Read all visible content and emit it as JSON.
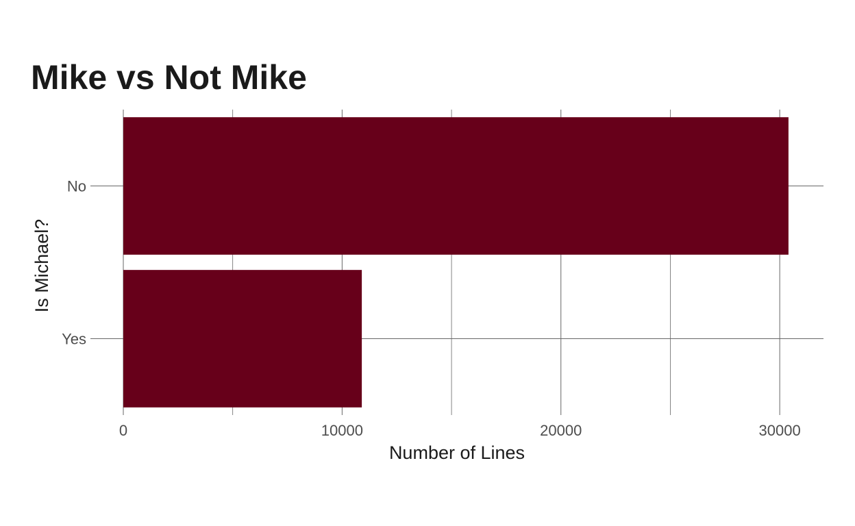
{
  "chart_data": {
    "type": "bar",
    "orientation": "horizontal",
    "title": "Mike vs Not Mike",
    "xlabel": "Number of Lines",
    "ylabel": "Is Michael?",
    "categories": [
      "No",
      "Yes"
    ],
    "values": [
      30400,
      10900
    ],
    "xlim": [
      0,
      32000
    ],
    "x_ticks": [
      0,
      10000,
      20000,
      30000
    ],
    "x_minor_ticks": [
      5000,
      15000,
      25000
    ],
    "grid": true,
    "legend": "none",
    "bar_color": "#67001a",
    "grid_color": "#666666"
  }
}
